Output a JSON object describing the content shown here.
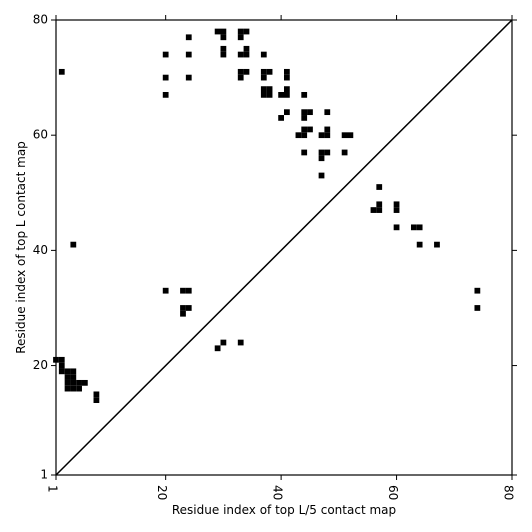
{
  "chart_data": {
    "type": "heatmap",
    "title": "",
    "xlabel": "Residue index of top L/5 contact map",
    "ylabel": "Residue index of top L contact map",
    "xlim": [
      1,
      80
    ],
    "ylim": [
      1,
      80
    ],
    "x_ticks": [
      "1",
      "20",
      "40",
      "60",
      "80"
    ],
    "y_ticks": [
      "1",
      "20",
      "40",
      "60",
      "80"
    ],
    "x_tick_values": [
      1,
      20,
      40,
      60,
      80
    ],
    "y_tick_values": [
      1,
      20,
      40,
      60,
      80
    ],
    "diagonal": true,
    "grid": false,
    "cell_color": "#000000",
    "cells": [
      [
        2,
        71
      ],
      [
        20,
        74
      ],
      [
        20,
        70
      ],
      [
        20,
        67
      ],
      [
        24,
        77
      ],
      [
        24,
        74
      ],
      [
        24,
        70
      ],
      [
        29,
        78
      ],
      [
        30,
        78
      ],
      [
        30,
        77
      ],
      [
        30,
        75
      ],
      [
        30,
        74
      ],
      [
        33,
        78
      ],
      [
        34,
        78
      ],
      [
        33,
        77
      ],
      [
        34,
        75
      ],
      [
        33,
        74
      ],
      [
        34,
        74
      ],
      [
        33,
        71
      ],
      [
        34,
        71
      ],
      [
        33,
        70
      ],
      [
        37,
        74
      ],
      [
        37,
        71
      ],
      [
        38,
        71
      ],
      [
        37,
        70
      ],
      [
        41,
        71
      ],
      [
        41,
        70
      ],
      [
        37,
        68
      ],
      [
        38,
        68
      ],
      [
        37,
        67
      ],
      [
        38,
        67
      ],
      [
        40,
        67
      ],
      [
        41,
        68
      ],
      [
        41,
        67
      ],
      [
        44,
        67
      ],
      [
        40,
        63
      ],
      [
        41,
        64
      ],
      [
        44,
        64
      ],
      [
        45,
        64
      ],
      [
        44,
        63
      ],
      [
        48,
        64
      ],
      [
        43,
        60
      ],
      [
        44,
        60
      ],
      [
        44,
        61
      ],
      [
        45,
        61
      ],
      [
        47,
        60
      ],
      [
        48,
        60
      ],
      [
        48,
        61
      ],
      [
        51,
        60
      ],
      [
        52,
        60
      ],
      [
        44,
        57
      ],
      [
        47,
        57
      ],
      [
        48,
        57
      ],
      [
        47,
        56
      ],
      [
        51,
        57
      ],
      [
        47,
        53
      ],
      [
        57,
        51
      ],
      [
        56,
        47
      ],
      [
        57,
        47
      ],
      [
        57,
        48
      ],
      [
        60,
        48
      ],
      [
        60,
        47
      ],
      [
        60,
        44
      ],
      [
        63,
        44
      ],
      [
        64,
        44
      ],
      [
        64,
        41
      ],
      [
        67,
        41
      ],
      [
        4,
        41
      ],
      [
        20,
        33
      ],
      [
        23,
        33
      ],
      [
        24,
        33
      ],
      [
        23,
        30
      ],
      [
        24,
        30
      ],
      [
        23,
        29
      ],
      [
        29,
        23
      ],
      [
        30,
        24
      ],
      [
        33,
        24
      ],
      [
        74,
        33
      ],
      [
        74,
        30
      ],
      [
        1,
        21
      ],
      [
        2,
        21
      ],
      [
        2,
        20
      ],
      [
        2,
        19
      ],
      [
        3,
        19
      ],
      [
        4,
        19
      ],
      [
        3,
        18
      ],
      [
        4,
        18
      ],
      [
        3,
        17
      ],
      [
        4,
        17
      ],
      [
        5,
        17
      ],
      [
        6,
        17
      ],
      [
        3,
        16
      ],
      [
        4,
        16
      ],
      [
        5,
        16
      ],
      [
        8,
        15
      ],
      [
        8,
        14
      ]
    ]
  }
}
